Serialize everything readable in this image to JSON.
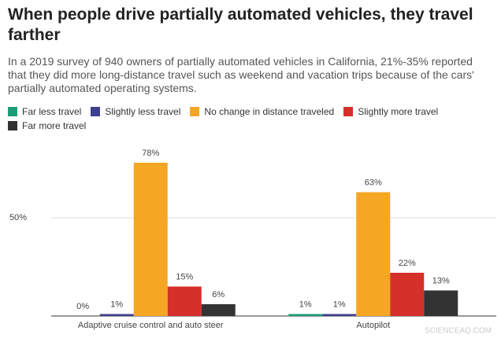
{
  "chart_data": {
    "type": "bar",
    "title": "When people drive partially automated vehicles, they travel farther",
    "subtitle": "In a 2019 survey of 940 owners of partially automated vehicles in California, 21%-35% reported that they did more long-distance travel such as weekend and vacation trips because of the cars' partially automated operating systems.",
    "categories": [
      "Adaptive cruise control and auto steer",
      "Autopilot"
    ],
    "series": [
      {
        "name": "Far less travel",
        "color": "#1b9e77",
        "values": [
          0,
          1
        ],
        "value_labels": [
          "0%",
          "1%"
        ]
      },
      {
        "name": "Slightly less travel",
        "color": "#3f3f8f",
        "values": [
          1,
          1
        ],
        "value_labels": [
          "1%",
          "1%"
        ]
      },
      {
        "name": "No change in distance traveled",
        "color": "#f5a623",
        "values": [
          78,
          63
        ],
        "value_labels": [
          "78%",
          "63%"
        ]
      },
      {
        "name": "Slightly more travel",
        "color": "#d6302a",
        "values": [
          15,
          22
        ],
        "value_labels": [
          "15%",
          "22%"
        ]
      },
      {
        "name": "Far more travel",
        "color": "#333333",
        "values": [
          6,
          13
        ],
        "value_labels": [
          "6%",
          "13%"
        ]
      }
    ],
    "ylim": [
      0,
      100
    ],
    "yticks": [
      {
        "value": 50,
        "label": "50%"
      }
    ],
    "grid": true,
    "watermark": "SCIENCEAQ.COM"
  }
}
